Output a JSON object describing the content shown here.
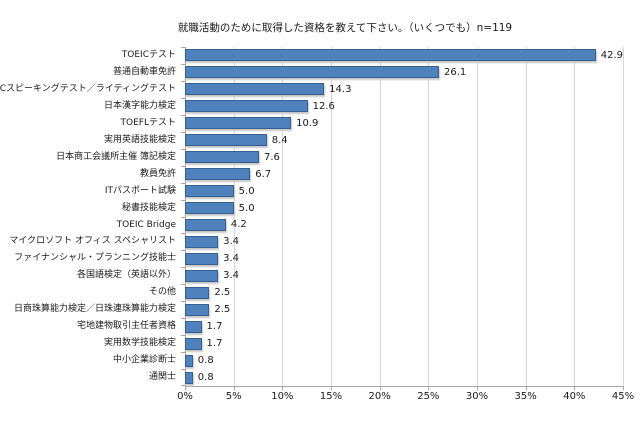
{
  "chart_data": {
    "type": "bar",
    "orientation": "horizontal",
    "title": "就職活動のために取得した資格を教えて下さい。（いくつでも）n=119",
    "categories": [
      "TOEICテスト",
      "普通自動車免許",
      "TOEICスピーキングテスト／ライティングテスト",
      "日本漢字能力検定",
      "TOEFLテスト",
      "実用英語技能検定",
      "日本商工会議所主催 簿記検定",
      "教員免許",
      "ITパスポート試験",
      "秘書技能検定",
      "TOEIC Bridge",
      "マイクロソフト オフィス スペシャリスト",
      "ファイナンシャル・プランニング技能士",
      "各国語検定（英語以外）",
      "その他",
      "日商珠算能力検定／日珠連珠算能力検定",
      "宅地建物取引主任者資格",
      "実用数学技能検定",
      "中小企業診断士",
      "通関士"
    ],
    "values": [
      42.9,
      26.1,
      14.3,
      12.6,
      10.9,
      8.4,
      7.6,
      6.7,
      5.0,
      5.0,
      4.2,
      3.4,
      3.4,
      3.4,
      2.5,
      2.5,
      1.7,
      1.7,
      0.8,
      0.8
    ],
    "value_labels": [
      "42.9",
      "26.1",
      "14.3",
      "12.6",
      "10.9",
      "8.4",
      "7.6",
      "6.7",
      "5.0",
      "5.0",
      "4.2",
      "3.4",
      "3.4",
      "3.4",
      "2.5",
      "2.5",
      "1.7",
      "1.7",
      "0.8",
      "0.8"
    ],
    "xlabel": "",
    "ylabel": "",
    "xlim": [
      0,
      45
    ],
    "x_tick_values": [
      0,
      5,
      10,
      15,
      20,
      25,
      30,
      35,
      40,
      45
    ],
    "x_tick_labels": [
      "0%",
      "5%",
      "10%",
      "15%",
      "20%",
      "25%",
      "30%",
      "35%",
      "40%",
      "45%"
    ],
    "grid": "vertical-gridlines-on",
    "legend": "none",
    "colors": {
      "bar_fill": "#4f81bd",
      "bar_border": "#36608f",
      "gridline": "#d6d6d6",
      "axis_line": "#a6a6a6",
      "text": "#1a1a1a",
      "background": "#ffffff"
    }
  }
}
